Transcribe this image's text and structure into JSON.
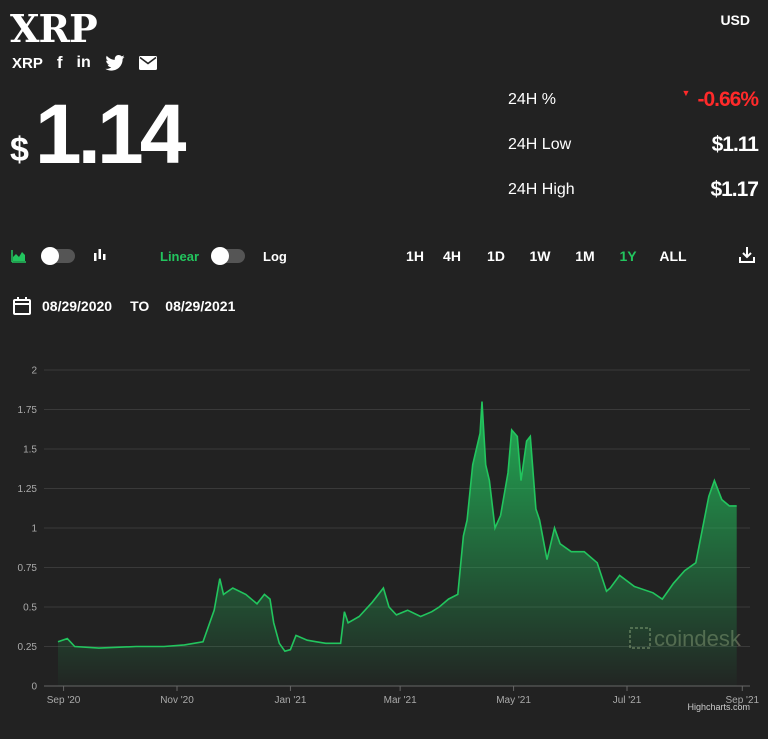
{
  "header": {
    "title": "XRP",
    "currency": "USD",
    "symbol": "XRP"
  },
  "price": {
    "currency_symbol": "$",
    "value": "1.14"
  },
  "stats": {
    "change_label": "24H %",
    "change_value": "-0.66%",
    "low_label": "24H Low",
    "low_value": "$1.11",
    "high_label": "24H High",
    "high_value": "$1.17"
  },
  "toolbar": {
    "linear_label": "Linear",
    "log_label": "Log",
    "ranges": [
      "1H",
      "4H",
      "1D",
      "1W",
      "1M",
      "1Y",
      "ALL"
    ],
    "active_range": "1Y"
  },
  "dates": {
    "from": "08/29/2020",
    "to_label": "TO",
    "to": "08/29/2021"
  },
  "watermark": "coindesk",
  "credits": "Highcharts.com",
  "colors": {
    "accent": "#22c55e",
    "negative": "#ff2a2a",
    "background": "#222222"
  },
  "chart_data": {
    "type": "area",
    "title": "",
    "xlabel": "",
    "ylabel": "",
    "ylim": [
      0,
      2
    ],
    "yticks": [
      0,
      0.25,
      0.5,
      0.75,
      1,
      1.25,
      1.5,
      1.75,
      2
    ],
    "ytick_labels": [
      "0",
      "0.25",
      "0.5",
      "0.75",
      "1",
      "1.25",
      "1.5",
      "1.75",
      "2"
    ],
    "xlim": [
      "2020-08-29",
      "2021-09-03"
    ],
    "xticks": [
      {
        "date": "2020-09-01",
        "label": "Sep '20"
      },
      {
        "date": "2020-11-01",
        "label": "Nov '20"
      },
      {
        "date": "2021-01-01",
        "label": "Jan '21"
      },
      {
        "date": "2021-03-01",
        "label": "Mar '21"
      },
      {
        "date": "2021-05-01",
        "label": "May '21"
      },
      {
        "date": "2021-07-01",
        "label": "Jul '21"
      },
      {
        "date": "2021-09-01",
        "label": "Sep '21"
      }
    ],
    "grid": true,
    "series": [
      {
        "color": "#22c55e",
        "x": [
          "2020-08-29",
          "2020-09-03",
          "2020-09-07",
          "2020-09-20",
          "2020-10-10",
          "2020-10-25",
          "2020-11-05",
          "2020-11-15",
          "2020-11-21",
          "2020-11-24",
          "2020-11-26",
          "2020-12-01",
          "2020-12-08",
          "2020-12-14",
          "2020-12-18",
          "2020-12-21",
          "2020-12-23",
          "2020-12-26",
          "2020-12-29",
          "2021-01-01",
          "2021-01-04",
          "2021-01-10",
          "2021-01-15",
          "2021-01-20",
          "2021-01-28",
          "2021-01-30",
          "2021-02-01",
          "2021-02-07",
          "2021-02-14",
          "2021-02-20",
          "2021-02-23",
          "2021-02-27",
          "2021-03-05",
          "2021-03-12",
          "2021-03-18",
          "2021-03-22",
          "2021-03-27",
          "2021-04-01",
          "2021-04-04",
          "2021-04-06",
          "2021-04-09",
          "2021-04-13",
          "2021-04-14",
          "2021-04-16",
          "2021-04-18",
          "2021-04-21",
          "2021-04-24",
          "2021-04-28",
          "2021-04-30",
          "2021-05-03",
          "2021-05-05",
          "2021-05-08",
          "2021-05-10",
          "2021-05-13",
          "2021-05-15",
          "2021-05-19",
          "2021-05-23",
          "2021-05-26",
          "2021-06-01",
          "2021-06-08",
          "2021-06-15",
          "2021-06-20",
          "2021-06-22",
          "2021-06-27",
          "2021-07-05",
          "2021-07-15",
          "2021-07-20",
          "2021-07-26",
          "2021-08-01",
          "2021-08-07",
          "2021-08-14",
          "2021-08-17",
          "2021-08-21",
          "2021-08-25",
          "2021-08-29"
        ],
        "y": [
          0.28,
          0.3,
          0.25,
          0.24,
          0.25,
          0.25,
          0.26,
          0.28,
          0.48,
          0.68,
          0.58,
          0.62,
          0.58,
          0.52,
          0.58,
          0.55,
          0.4,
          0.27,
          0.22,
          0.23,
          0.32,
          0.29,
          0.28,
          0.27,
          0.27,
          0.47,
          0.4,
          0.44,
          0.53,
          0.62,
          0.5,
          0.45,
          0.48,
          0.44,
          0.47,
          0.5,
          0.55,
          0.58,
          0.95,
          1.05,
          1.4,
          1.6,
          1.8,
          1.4,
          1.3,
          1.0,
          1.08,
          1.35,
          1.62,
          1.58,
          1.3,
          1.55,
          1.58,
          1.12,
          1.05,
          0.8,
          1.0,
          0.9,
          0.85,
          0.85,
          0.78,
          0.6,
          0.62,
          0.7,
          0.63,
          0.59,
          0.55,
          0.65,
          0.73,
          0.78,
          1.2,
          1.3,
          1.18,
          1.14,
          1.14
        ]
      }
    ]
  }
}
